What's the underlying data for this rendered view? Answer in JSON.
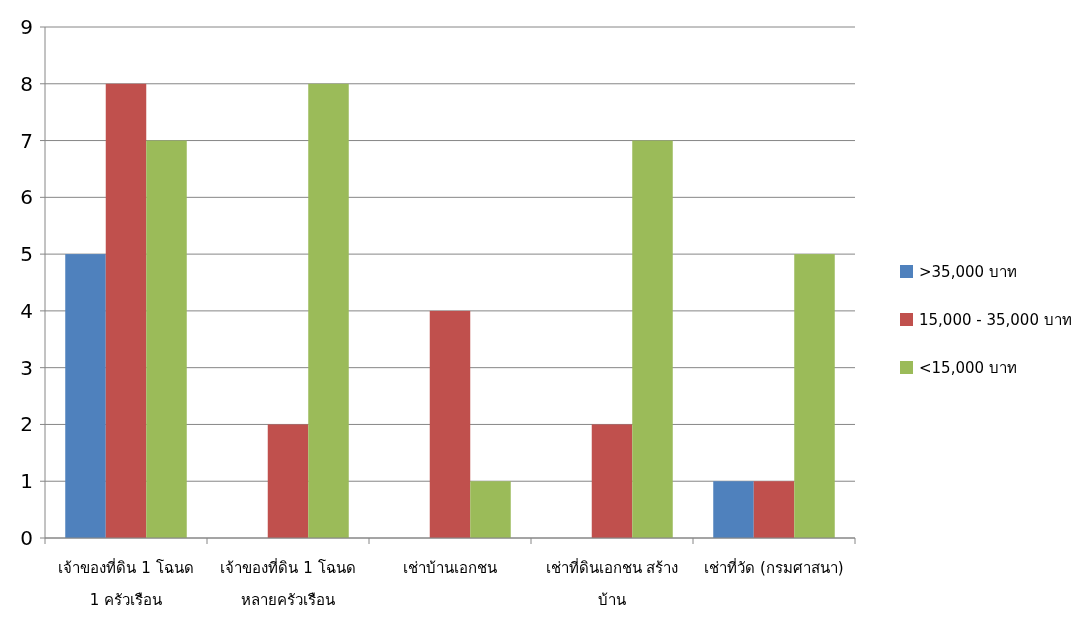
{
  "chart_data": {
    "type": "bar",
    "categories": [
      "เจ้าของที่ดิน 1 โฉนด\n1 ครัวเรือน",
      "เจ้าของที่ดิน 1 โฉนด\nหลายครัวเรือน",
      "เช่าบ้านเอกชน",
      "เช่าที่ดินเอกชน สร้าง\nบ้าน",
      "เช่าที่วัด (กรมศาสนา)"
    ],
    "series": [
      {
        "name": ">35,000 บาท",
        "color": "#4f81bd",
        "values": [
          5,
          0,
          0,
          0,
          1
        ]
      },
      {
        "name": "15,000 - 35,000 บาท",
        "color": "#c0504d",
        "values": [
          8,
          2,
          4,
          2,
          1
        ]
      },
      {
        "name": "<15,000 บาท",
        "color": "#9bbb59",
        "values": [
          7,
          8,
          1,
          7,
          5
        ]
      }
    ],
    "ylim": [
      0,
      9
    ],
    "yticks": [
      0,
      1,
      2,
      3,
      4,
      5,
      6,
      7,
      8,
      9
    ],
    "grid": "y",
    "legend": "right"
  }
}
